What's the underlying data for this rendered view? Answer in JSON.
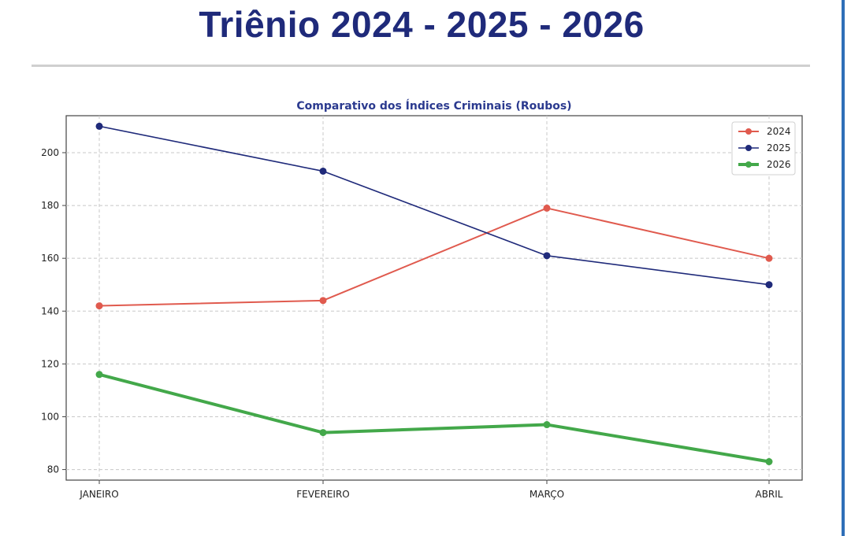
{
  "header": {
    "title": "Triênio 2024 - 2025 - 2026"
  },
  "chart_data": {
    "type": "line",
    "title": "Comparativo dos Índices Criminais (Roubos)",
    "xlabel": "",
    "ylabel": "",
    "categories": [
      "JANEIRO",
      "FEVEREIRO",
      "MARÇO",
      "ABRIL"
    ],
    "ylim": [
      76,
      214
    ],
    "yticks": [
      80,
      100,
      120,
      140,
      160,
      180,
      200
    ],
    "grid": true,
    "legend_position": "top-right",
    "series": [
      {
        "name": "2024",
        "color": "#e05a4e",
        "values": [
          142,
          144,
          179,
          160
        ]
      },
      {
        "name": "2025",
        "color": "#1f2a7a",
        "values": [
          210,
          193,
          161,
          150
        ]
      },
      {
        "name": "2026",
        "color": "#43a84a",
        "values": [
          116,
          94,
          97,
          83
        ]
      }
    ]
  }
}
